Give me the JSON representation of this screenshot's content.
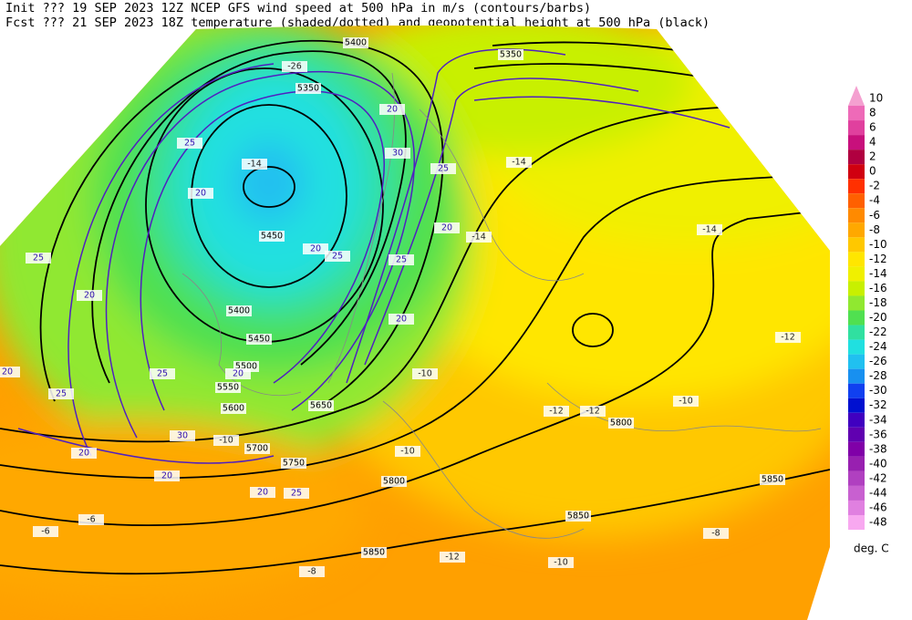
{
  "header": {
    "line1": "Init  ??? 19 SEP 2023 12Z  NCEP GFS wind speed at 500 hPa in m/s (contours/barbs)",
    "line2": "Fcst ??? 21 SEP 2023 18Z  temperature (shaded/dotted) and geopotential height at 500 hPa (black)"
  },
  "colorbar": {
    "labels": [
      10,
      8,
      6,
      4,
      2,
      0,
      -2,
      -4,
      -6,
      -8,
      -10,
      -12,
      -14,
      -16,
      -18,
      -20,
      -22,
      -24,
      -26,
      -28,
      -30,
      -32,
      -34,
      -36,
      -38,
      -40,
      -42,
      -44,
      -46,
      -48
    ],
    "colors": [
      "#f4a0d0",
      "#ee6ab8",
      "#e0409e",
      "#c8107c",
      "#b00040",
      "#d00010",
      "#ff3000",
      "#ff6000",
      "#ff8a00",
      "#ffa800",
      "#ffc800",
      "#ffe600",
      "#f0f000",
      "#c8f000",
      "#90e830",
      "#50e050",
      "#30e0a0",
      "#20e0e0",
      "#20c0f0",
      "#1890f0",
      "#1040f0",
      "#0010d0",
      "#4000c0",
      "#6000b0",
      "#8000a8",
      "#9820b0",
      "#b040c0",
      "#c860d0",
      "#e080e0",
      "#f8a8f0"
    ],
    "unit": "deg. C"
  },
  "map": {
    "height_labels": [
      "5400",
      "5350",
      "5450",
      "5400",
      "5450",
      "5500",
      "5550",
      "5600",
      "5700",
      "5750",
      "5800",
      "5850",
      "5850",
      "5850",
      "5800",
      "5350",
      "5650"
    ],
    "temperature_labels": [
      "-26",
      "-14",
      "-14",
      "-14",
      "-14",
      "-10",
      "-12",
      "-10",
      "-10",
      "-12",
      "-6",
      "-6",
      "-8",
      "-8",
      "-10",
      "-12",
      "-10",
      "-12"
    ],
    "wind_labels": [
      "20",
      "25",
      "20",
      "20",
      "25",
      "20",
      "25",
      "20",
      "20",
      "25",
      "20",
      "20",
      "25",
      "30",
      "20",
      "25",
      "20",
      "25",
      "20",
      "30",
      "25"
    ]
  }
}
